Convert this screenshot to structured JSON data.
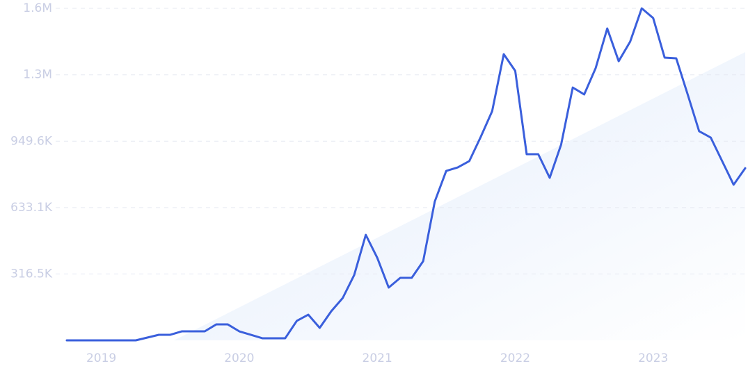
{
  "chart_data": {
    "type": "line",
    "x": [
      2018.75,
      2019.25,
      2019.417,
      2019.5,
      2019.583,
      2019.75,
      2019.833,
      2019.917,
      2020,
      2020.083,
      2020.167,
      2020.333,
      2020.417,
      2020.5,
      2020.583,
      2020.667,
      2020.75,
      2020.833,
      2020.917,
      2021,
      2021.083,
      2021.167,
      2021.25,
      2021.333,
      2021.417,
      2021.5,
      2021.583,
      2021.667,
      2021.75,
      2021.833,
      2021.917,
      2022,
      2022.083,
      2022.167,
      2022.25,
      2022.333,
      2022.417,
      2022.5,
      2022.583,
      2022.667,
      2022.75,
      2022.833,
      2022.917,
      2023,
      2023.083,
      2023.167,
      2023.25,
      2023.333,
      2023.417,
      2023.5,
      2023.583,
      2023.667
    ],
    "series": [
      {
        "color": "#3a5fdc",
        "values": [
          0,
          0,
          26500,
          26500,
          43000,
          43000,
          76000,
          76000,
          43000,
          26500,
          10000,
          10000,
          93000,
          122500,
          59600,
          139000,
          202000,
          311500,
          503000,
          394000,
          251700,
          298000,
          298000,
          377500,
          662000,
          808000,
          824500,
          854500,
          970000,
          1093000,
          1364500,
          1285000,
          887500,
          887500,
          775000,
          934000,
          1205500,
          1172500,
          1298000,
          1487000,
          1331000,
          1424000,
          1583000,
          1536500,
          1348000,
          1344600,
          1172500,
          997000,
          967000,
          854500,
          742000,
          821000
        ]
      }
    ],
    "xlim": [
      2018.75,
      2023.667
    ],
    "xticks": [
      2019,
      2020,
      2021,
      2022,
      2023
    ],
    "ylim": [
      0,
      1583000
    ],
    "yticks": [
      {
        "value": 316500,
        "label": "316.5K"
      },
      {
        "value": 633100,
        "label": "633.1K"
      },
      {
        "value": 949600,
        "label": "949.6K"
      },
      {
        "value": 1266000,
        "label": "1.3M"
      },
      {
        "value": 1583000,
        "label": "1.6M"
      }
    ],
    "grid": true
  }
}
